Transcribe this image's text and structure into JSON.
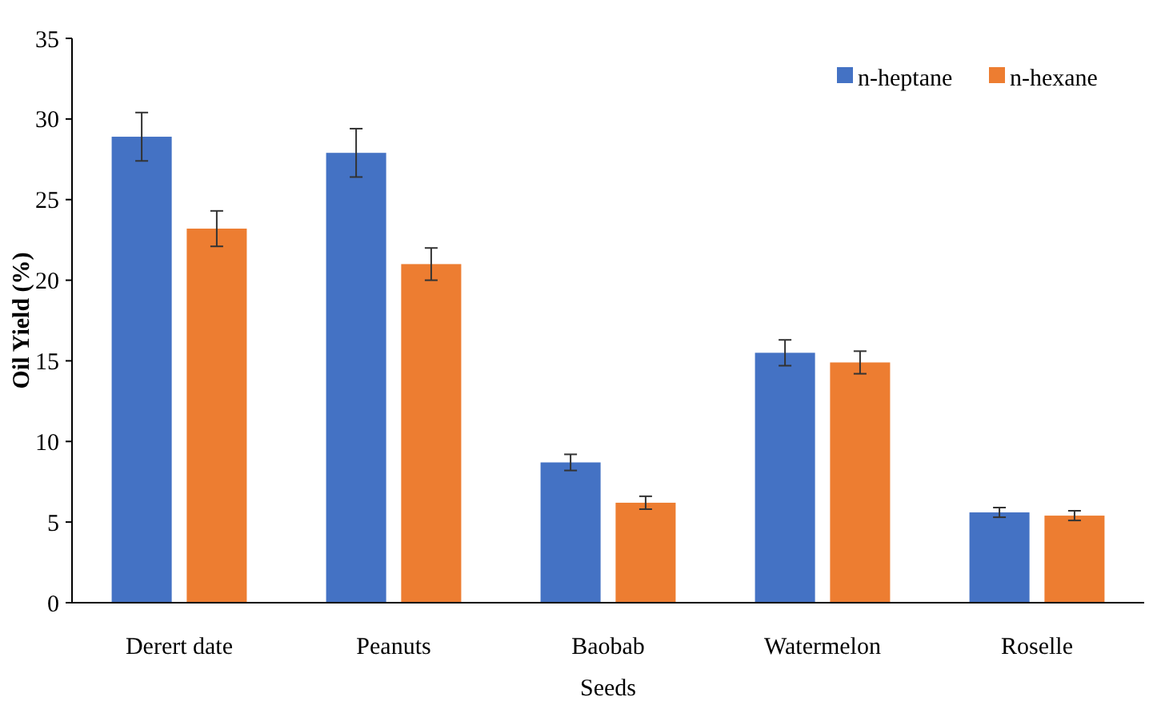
{
  "chart_data": {
    "type": "bar",
    "xlabel": "Seeds",
    "ylabel": "Oil Yield (%)",
    "categories": [
      "Derert date",
      "Peanuts",
      "Baobab",
      "Watermelon",
      "Roselle"
    ],
    "series": [
      {
        "name": "n-heptane",
        "color": "#4472c4",
        "values": [
          28.9,
          27.9,
          8.7,
          15.5,
          5.6
        ],
        "errors": [
          1.5,
          1.5,
          0.5,
          0.8,
          0.3
        ]
      },
      {
        "name": "n-hexane",
        "color": "#ed7d31",
        "values": [
          23.2,
          21.0,
          6.2,
          14.9,
          5.4
        ],
        "errors": [
          1.1,
          1.0,
          0.4,
          0.7,
          0.3
        ]
      }
    ],
    "ylim": [
      0,
      35
    ],
    "yticks": [
      0,
      5,
      10,
      15,
      20,
      25,
      30,
      35
    ],
    "grid": false,
    "legend": "top right"
  }
}
